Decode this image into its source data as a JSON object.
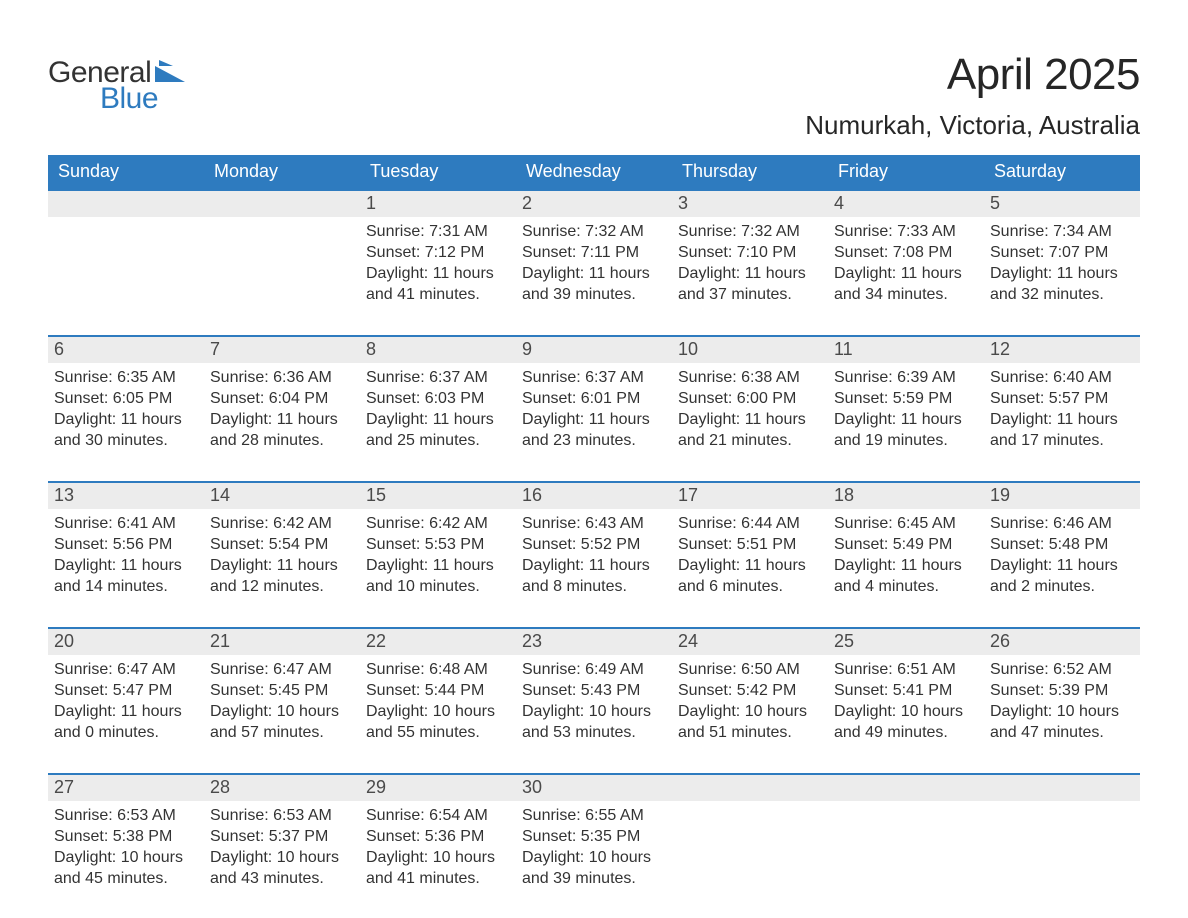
{
  "brand": {
    "word1": "General",
    "word2": "Blue",
    "colors": {
      "text": "#333333",
      "accent": "#2e7bbf",
      "triangle": "#2e7bbf"
    }
  },
  "title": "April 2025",
  "location": "Numurkah, Victoria, Australia",
  "style": {
    "background": "#ffffff",
    "header_bg": "#2e7bbf",
    "header_fg": "#ffffff",
    "daynum_bg": "#ececec",
    "daynum_fg": "#4a4a4a",
    "body_fg": "#333333",
    "week_border": "#2e7bbf",
    "title_fontsize": 44,
    "location_fontsize": 26,
    "weekday_fontsize": 18,
    "daynum_fontsize": 18,
    "body_fontsize": 16,
    "logo_fontsize": 30
  },
  "weekdays": [
    "Sunday",
    "Monday",
    "Tuesday",
    "Wednesday",
    "Thursday",
    "Friday",
    "Saturday"
  ],
  "weeks": [
    [
      null,
      null,
      {
        "n": "1",
        "sunrise": "Sunrise: 7:31 AM",
        "sunset": "Sunset: 7:12 PM",
        "daylight": "Daylight: 11 hours and 41 minutes."
      },
      {
        "n": "2",
        "sunrise": "Sunrise: 7:32 AM",
        "sunset": "Sunset: 7:11 PM",
        "daylight": "Daylight: 11 hours and 39 minutes."
      },
      {
        "n": "3",
        "sunrise": "Sunrise: 7:32 AM",
        "sunset": "Sunset: 7:10 PM",
        "daylight": "Daylight: 11 hours and 37 minutes."
      },
      {
        "n": "4",
        "sunrise": "Sunrise: 7:33 AM",
        "sunset": "Sunset: 7:08 PM",
        "daylight": "Daylight: 11 hours and 34 minutes."
      },
      {
        "n": "5",
        "sunrise": "Sunrise: 7:34 AM",
        "sunset": "Sunset: 7:07 PM",
        "daylight": "Daylight: 11 hours and 32 minutes."
      }
    ],
    [
      {
        "n": "6",
        "sunrise": "Sunrise: 6:35 AM",
        "sunset": "Sunset: 6:05 PM",
        "daylight": "Daylight: 11 hours and 30 minutes."
      },
      {
        "n": "7",
        "sunrise": "Sunrise: 6:36 AM",
        "sunset": "Sunset: 6:04 PM",
        "daylight": "Daylight: 11 hours and 28 minutes."
      },
      {
        "n": "8",
        "sunrise": "Sunrise: 6:37 AM",
        "sunset": "Sunset: 6:03 PM",
        "daylight": "Daylight: 11 hours and 25 minutes."
      },
      {
        "n": "9",
        "sunrise": "Sunrise: 6:37 AM",
        "sunset": "Sunset: 6:01 PM",
        "daylight": "Daylight: 11 hours and 23 minutes."
      },
      {
        "n": "10",
        "sunrise": "Sunrise: 6:38 AM",
        "sunset": "Sunset: 6:00 PM",
        "daylight": "Daylight: 11 hours and 21 minutes."
      },
      {
        "n": "11",
        "sunrise": "Sunrise: 6:39 AM",
        "sunset": "Sunset: 5:59 PM",
        "daylight": "Daylight: 11 hours and 19 minutes."
      },
      {
        "n": "12",
        "sunrise": "Sunrise: 6:40 AM",
        "sunset": "Sunset: 5:57 PM",
        "daylight": "Daylight: 11 hours and 17 minutes."
      }
    ],
    [
      {
        "n": "13",
        "sunrise": "Sunrise: 6:41 AM",
        "sunset": "Sunset: 5:56 PM",
        "daylight": "Daylight: 11 hours and 14 minutes."
      },
      {
        "n": "14",
        "sunrise": "Sunrise: 6:42 AM",
        "sunset": "Sunset: 5:54 PM",
        "daylight": "Daylight: 11 hours and 12 minutes."
      },
      {
        "n": "15",
        "sunrise": "Sunrise: 6:42 AM",
        "sunset": "Sunset: 5:53 PM",
        "daylight": "Daylight: 11 hours and 10 minutes."
      },
      {
        "n": "16",
        "sunrise": "Sunrise: 6:43 AM",
        "sunset": "Sunset: 5:52 PM",
        "daylight": "Daylight: 11 hours and 8 minutes."
      },
      {
        "n": "17",
        "sunrise": "Sunrise: 6:44 AM",
        "sunset": "Sunset: 5:51 PM",
        "daylight": "Daylight: 11 hours and 6 minutes."
      },
      {
        "n": "18",
        "sunrise": "Sunrise: 6:45 AM",
        "sunset": "Sunset: 5:49 PM",
        "daylight": "Daylight: 11 hours and 4 minutes."
      },
      {
        "n": "19",
        "sunrise": "Sunrise: 6:46 AM",
        "sunset": "Sunset: 5:48 PM",
        "daylight": "Daylight: 11 hours and 2 minutes."
      }
    ],
    [
      {
        "n": "20",
        "sunrise": "Sunrise: 6:47 AM",
        "sunset": "Sunset: 5:47 PM",
        "daylight": "Daylight: 11 hours and 0 minutes."
      },
      {
        "n": "21",
        "sunrise": "Sunrise: 6:47 AM",
        "sunset": "Sunset: 5:45 PM",
        "daylight": "Daylight: 10 hours and 57 minutes."
      },
      {
        "n": "22",
        "sunrise": "Sunrise: 6:48 AM",
        "sunset": "Sunset: 5:44 PM",
        "daylight": "Daylight: 10 hours and 55 minutes."
      },
      {
        "n": "23",
        "sunrise": "Sunrise: 6:49 AM",
        "sunset": "Sunset: 5:43 PM",
        "daylight": "Daylight: 10 hours and 53 minutes."
      },
      {
        "n": "24",
        "sunrise": "Sunrise: 6:50 AM",
        "sunset": "Sunset: 5:42 PM",
        "daylight": "Daylight: 10 hours and 51 minutes."
      },
      {
        "n": "25",
        "sunrise": "Sunrise: 6:51 AM",
        "sunset": "Sunset: 5:41 PM",
        "daylight": "Daylight: 10 hours and 49 minutes."
      },
      {
        "n": "26",
        "sunrise": "Sunrise: 6:52 AM",
        "sunset": "Sunset: 5:39 PM",
        "daylight": "Daylight: 10 hours and 47 minutes."
      }
    ],
    [
      {
        "n": "27",
        "sunrise": "Sunrise: 6:53 AM",
        "sunset": "Sunset: 5:38 PM",
        "daylight": "Daylight: 10 hours and 45 minutes."
      },
      {
        "n": "28",
        "sunrise": "Sunrise: 6:53 AM",
        "sunset": "Sunset: 5:37 PM",
        "daylight": "Daylight: 10 hours and 43 minutes."
      },
      {
        "n": "29",
        "sunrise": "Sunrise: 6:54 AM",
        "sunset": "Sunset: 5:36 PM",
        "daylight": "Daylight: 10 hours and 41 minutes."
      },
      {
        "n": "30",
        "sunrise": "Sunrise: 6:55 AM",
        "sunset": "Sunset: 5:35 PM",
        "daylight": "Daylight: 10 hours and 39 minutes."
      },
      null,
      null,
      null
    ]
  ]
}
